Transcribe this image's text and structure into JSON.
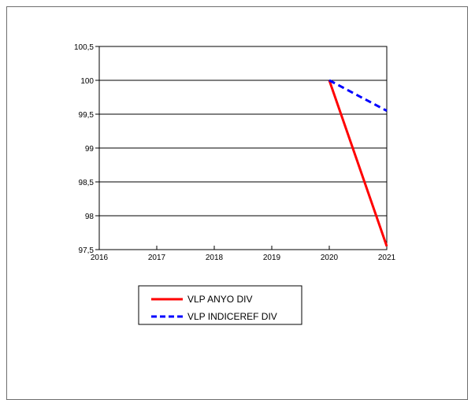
{
  "chart_data": {
    "type": "line",
    "title": "",
    "xlabel": "",
    "ylabel": "",
    "x": [
      "2016",
      "2017",
      "2018",
      "2019",
      "2020",
      "2021"
    ],
    "ylim": [
      97.5,
      100.5
    ],
    "yticks": [
      "100,5",
      "100",
      "99,5",
      "99",
      "98,5",
      "98",
      "97,5"
    ],
    "ytick_values": [
      100.5,
      100,
      99.5,
      99,
      98.5,
      98,
      97.5
    ],
    "grid": "horizontal",
    "legend_position": "bottom-left",
    "series": [
      {
        "name": "VLP ANYO DIV",
        "color": "#ff0000",
        "style": "solid",
        "values": [
          null,
          null,
          null,
          null,
          100,
          97.55
        ]
      },
      {
        "name": "VLP INDICEREF DIV",
        "color": "#0000ff",
        "style": "dashed",
        "values": [
          null,
          null,
          null,
          null,
          100,
          99.55
        ]
      }
    ]
  }
}
